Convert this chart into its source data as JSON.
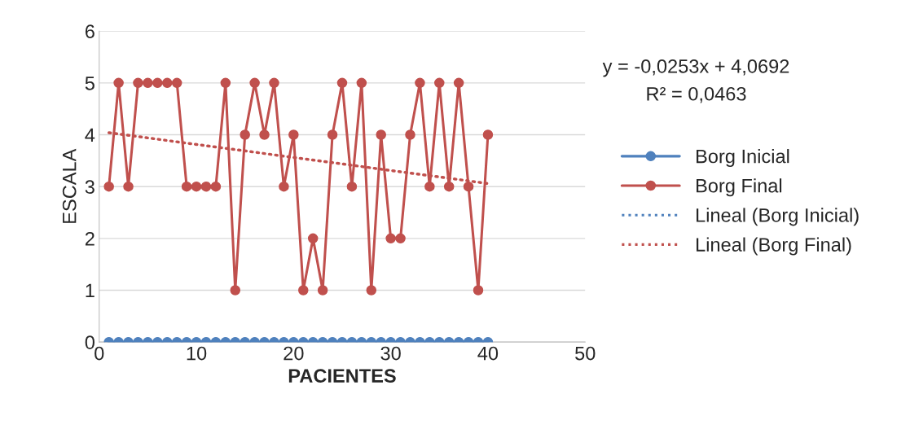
{
  "chart_data": {
    "type": "line",
    "xlabel": "PACIENTES",
    "ylabel": "ESCALA",
    "x": [
      1,
      2,
      3,
      4,
      5,
      6,
      7,
      8,
      9,
      10,
      11,
      12,
      13,
      14,
      15,
      16,
      17,
      18,
      19,
      20,
      21,
      22,
      23,
      24,
      25,
      26,
      27,
      28,
      29,
      30,
      31,
      32,
      33,
      34,
      35,
      36,
      37,
      38,
      39,
      40
    ],
    "series": [
      {
        "name": "Borg Inicial",
        "color": "#4f81bd",
        "marker": "circle",
        "line_style": "solid",
        "values": [
          0,
          0,
          0,
          0,
          0,
          0,
          0,
          0,
          0,
          0,
          0,
          0,
          0,
          0,
          0,
          0,
          0,
          0,
          0,
          0,
          0,
          0,
          0,
          0,
          0,
          0,
          0,
          0,
          0,
          0,
          0,
          0,
          0,
          0,
          0,
          0,
          0,
          0,
          0,
          0
        ]
      },
      {
        "name": "Borg Final",
        "color": "#c0504d",
        "marker": "circle",
        "line_style": "solid",
        "values": [
          3,
          5,
          3,
          5,
          5,
          5,
          5,
          5,
          3,
          3,
          3,
          3,
          5,
          1,
          4,
          5,
          4,
          5,
          3,
          4,
          1,
          2,
          1,
          4,
          5,
          3,
          5,
          1,
          4,
          2,
          2,
          4,
          5,
          3,
          5,
          3,
          5,
          3,
          1,
          4
        ]
      },
      {
        "name": "Lineal (Borg Inicial)",
        "color": "#4f81bd",
        "marker": "none",
        "line_style": "dotted",
        "values": [
          null,
          null,
          null,
          null,
          null,
          null,
          null,
          null,
          null,
          null,
          null,
          null,
          null,
          null,
          null,
          null,
          null,
          null,
          null,
          null,
          null,
          null,
          null,
          null,
          null,
          null,
          null,
          null,
          null,
          null,
          null,
          null,
          null,
          null,
          null,
          null,
          null,
          null,
          null,
          null
        ]
      },
      {
        "name": "Lineal (Borg Final)",
        "color": "#c0504d",
        "marker": "none",
        "line_style": "dotted",
        "x": [
          1,
          40
        ],
        "values": [
          4.04,
          3.06
        ]
      }
    ],
    "xlim": [
      0,
      50
    ],
    "xticks": [
      0,
      10,
      20,
      30,
      40,
      50
    ],
    "ylim": [
      0,
      6
    ],
    "yticks": [
      0,
      1,
      2,
      3,
      4,
      5,
      6
    ],
    "grid": "y",
    "legend": "right",
    "annotations": [
      "y = -0,0253x + 4,0692",
      "R² = 0,0463"
    ]
  }
}
